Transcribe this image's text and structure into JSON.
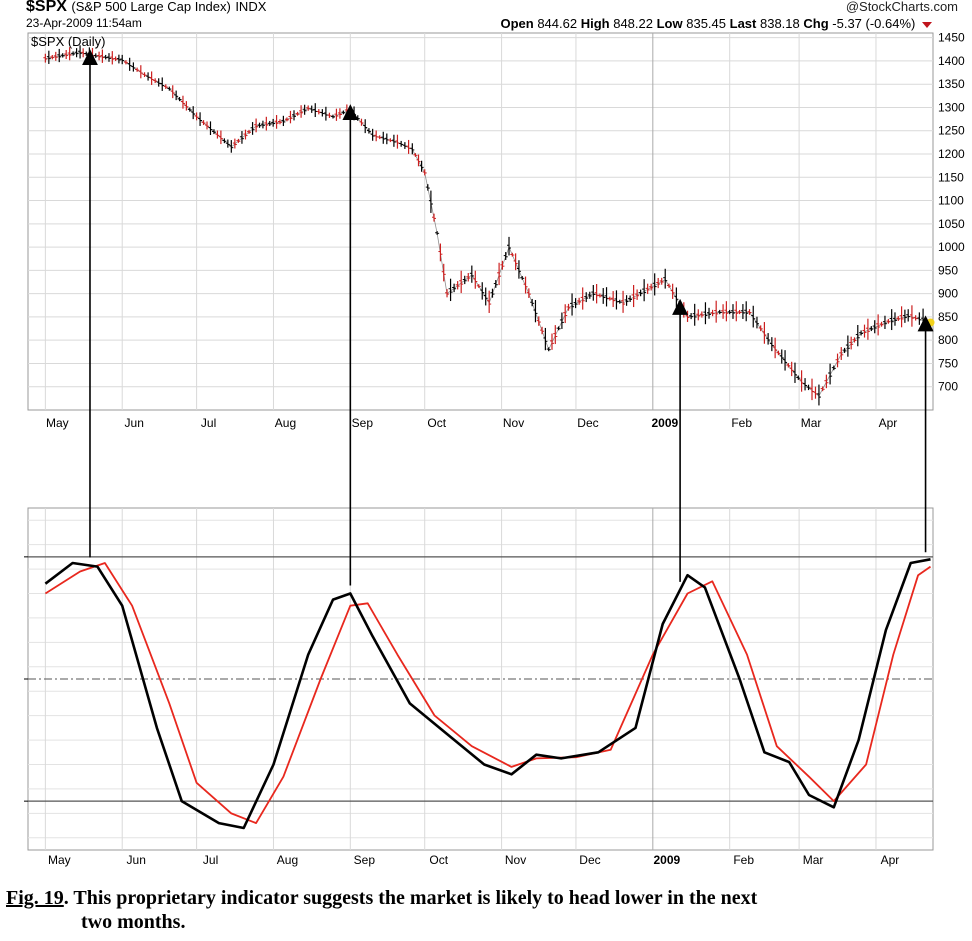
{
  "header": {
    "symbol": "$SPX",
    "name": "(S&P 500 Large Cap Index)",
    "exchange": "INDX",
    "date": "23-Apr-2009 11:54am",
    "brand": "@StockCharts.com",
    "open_label": "Open",
    "open": "844.62",
    "high_label": "High",
    "high": "848.22",
    "low_label": "Low",
    "low": "835.45",
    "last_label": "Last",
    "last": "838.18",
    "chg_label": "Chg",
    "chg": "-5.37 (-0.64%)"
  },
  "colors": {
    "up_bar": "#000000",
    "down_bar": "#cc1f1f",
    "oscillator_fast": "#000000",
    "oscillator_signal": "#e8281e",
    "grid": "#d9d9d9",
    "last_marker": "#f2d21b"
  },
  "chart_data": [
    {
      "type": "line",
      "chart_label": "$SPX (Daily)",
      "ylim": [
        650,
        1460
      ],
      "yticks": [
        "1450",
        "1400",
        "1350",
        "1300",
        "1250",
        "1200",
        "1150",
        "1100",
        "1050",
        "1000",
        "950",
        "900",
        "850",
        "800",
        "750",
        "700"
      ],
      "xticks": [
        "May",
        "Jun",
        "Jul",
        "Aug",
        "Sep",
        "Oct",
        "Nov",
        "Dec",
        "2009",
        "Feb",
        "Mar",
        "Apr"
      ],
      "series": [
        {
          "points": [
            [
              "2008-05-01",
              1405
            ],
            [
              "2008-05-15",
              1418
            ],
            [
              "2008-05-20",
              1412
            ],
            [
              "2008-06-01",
              1402
            ],
            [
              "2008-06-10",
              1370
            ],
            [
              "2008-06-20",
              1340
            ],
            [
              "2008-07-01",
              1280
            ],
            [
              "2008-07-15",
              1215
            ],
            [
              "2008-07-25",
              1260
            ],
            [
              "2008-08-05",
              1270
            ],
            [
              "2008-08-15",
              1298
            ],
            [
              "2008-08-25",
              1280
            ],
            [
              "2008-09-01",
              1295
            ],
            [
              "2008-09-10",
              1240
            ],
            [
              "2008-09-20",
              1225
            ],
            [
              "2008-09-26",
              1210
            ],
            [
              "2008-10-01",
              1160
            ],
            [
              "2008-10-06",
              1030
            ],
            [
              "2008-10-10",
              900
            ],
            [
              "2008-10-20",
              940
            ],
            [
              "2008-10-27",
              880
            ],
            [
              "2008-11-04",
              1000
            ],
            [
              "2008-11-12",
              900
            ],
            [
              "2008-11-20",
              780
            ],
            [
              "2008-11-28",
              870
            ],
            [
              "2008-12-08",
              900
            ],
            [
              "2008-12-20",
              880
            ],
            [
              "2009-01-06",
              930
            ],
            [
              "2009-01-15",
              850
            ],
            [
              "2009-01-28",
              860
            ],
            [
              "2009-02-09",
              860
            ],
            [
              "2009-02-18",
              790
            ],
            [
              "2009-03-02",
              710
            ],
            [
              "2009-03-09",
              680
            ],
            [
              "2009-03-18",
              770
            ],
            [
              "2009-03-26",
              815
            ],
            [
              "2009-04-06",
              840
            ],
            [
              "2009-04-14",
              852
            ],
            [
              "2009-04-23",
              838
            ]
          ]
        }
      ],
      "annotation": "tops marked by arrows from oscillator peaks"
    },
    {
      "type": "line",
      "ylim": [
        -100,
        100
      ],
      "yticks": [
        "",
        "",
        ""
      ],
      "xticks": [
        "May",
        "Jun",
        "Jul",
        "Aug",
        "Sep",
        "Oct",
        "Nov",
        "Dec",
        "2009",
        "Feb",
        "Mar",
        "Apr"
      ],
      "series": [
        {
          "points": [
            [
              "2008-05-01",
              78
            ],
            [
              "2008-05-12",
              95
            ],
            [
              "2008-05-22",
              92
            ],
            [
              "2008-06-01",
              60
            ],
            [
              "2008-06-15",
              -40
            ],
            [
              "2008-06-25",
              -100
            ],
            [
              "2008-07-10",
              -118
            ],
            [
              "2008-07-20",
              -122
            ],
            [
              "2008-08-01",
              -70
            ],
            [
              "2008-08-15",
              20
            ],
            [
              "2008-08-25",
              65
            ],
            [
              "2008-09-01",
              70
            ],
            [
              "2008-09-10",
              35
            ],
            [
              "2008-09-25",
              -20
            ],
            [
              "2008-10-10",
              -45
            ],
            [
              "2008-10-25",
              -70
            ],
            [
              "2008-11-05",
              -78
            ],
            [
              "2008-11-15",
              -62
            ],
            [
              "2008-11-25",
              -65
            ],
            [
              "2008-12-10",
              -60
            ],
            [
              "2008-12-25",
              -40
            ],
            [
              "2009-01-05",
              45
            ],
            [
              "2009-01-15",
              85
            ],
            [
              "2009-01-22",
              75
            ],
            [
              "2009-02-05",
              0
            ],
            [
              "2009-02-15",
              -60
            ],
            [
              "2009-02-25",
              -68
            ],
            [
              "2009-03-05",
              -95
            ],
            [
              "2009-03-15",
              -105
            ],
            [
              "2009-03-25",
              -50
            ],
            [
              "2009-04-05",
              40
            ],
            [
              "2009-04-15",
              95
            ],
            [
              "2009-04-23",
              98
            ]
          ]
        },
        {
          "points": [
            [
              "2008-05-01",
              70
            ],
            [
              "2008-05-15",
              88
            ],
            [
              "2008-05-25",
              95
            ],
            [
              "2008-06-05",
              60
            ],
            [
              "2008-06-20",
              -20
            ],
            [
              "2008-07-01",
              -85
            ],
            [
              "2008-07-15",
              -110
            ],
            [
              "2008-07-25",
              -118
            ],
            [
              "2008-08-05",
              -80
            ],
            [
              "2008-08-20",
              0
            ],
            [
              "2008-09-01",
              60
            ],
            [
              "2008-09-08",
              62
            ],
            [
              "2008-09-20",
              20
            ],
            [
              "2008-10-05",
              -30
            ],
            [
              "2008-10-20",
              -55
            ],
            [
              "2008-11-05",
              -72
            ],
            [
              "2008-11-15",
              -65
            ],
            [
              "2008-12-01",
              -64
            ],
            [
              "2008-12-15",
              -58
            ],
            [
              "2009-01-01",
              20
            ],
            [
              "2009-01-15",
              70
            ],
            [
              "2009-01-25",
              80
            ],
            [
              "2009-02-08",
              20
            ],
            [
              "2009-02-20",
              -55
            ],
            [
              "2009-03-05",
              -80
            ],
            [
              "2009-03-15",
              -100
            ],
            [
              "2009-03-28",
              -70
            ],
            [
              "2009-04-08",
              20
            ],
            [
              "2009-04-18",
              85
            ],
            [
              "2009-04-23",
              92
            ]
          ]
        }
      ]
    }
  ],
  "arrows": [
    {
      "from_date": "2008-05-19",
      "to_date": "2008-05-19",
      "label": ""
    },
    {
      "from_date": "2008-09-01",
      "to_date": "2008-09-01",
      "label": ""
    },
    {
      "from_date": "2009-01-12",
      "to_date": "2009-01-12",
      "label": ""
    },
    {
      "from_date": "2009-04-21",
      "to_date": "2009-04-21",
      "label": ""
    }
  ],
  "caption": {
    "figref": "Fig. 19",
    "text_1": ". This proprietary indicator suggests the market is likely to head lower in the next",
    "text_2": "two months."
  }
}
